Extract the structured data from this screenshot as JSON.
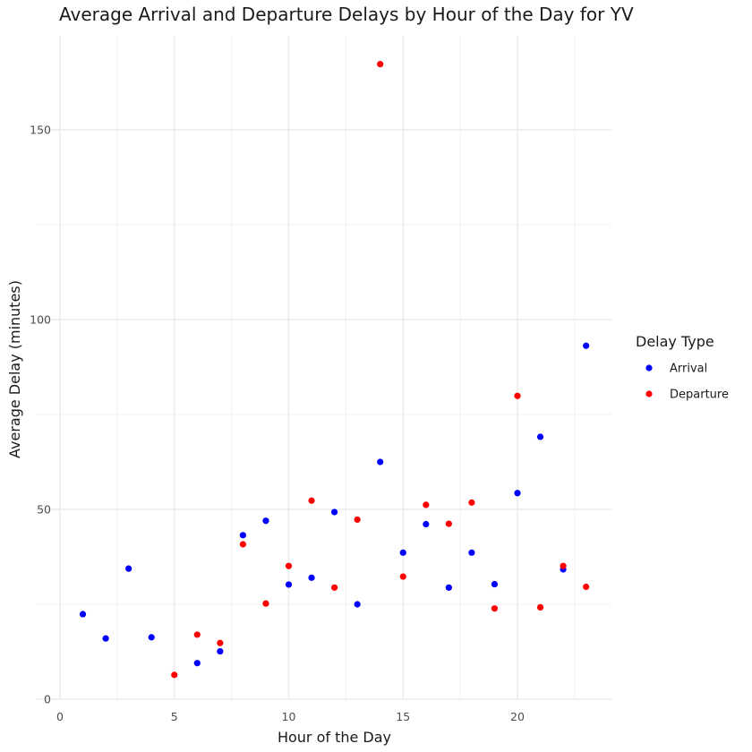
{
  "chart_data": {
    "type": "scatter",
    "title": "Average Arrival and Departure Delays by Hour of the Day for YV",
    "xlabel": "Hour of the Day",
    "ylabel": "Average Delay (minutes)",
    "xlim": [
      0,
      24
    ],
    "ylim": [
      0,
      175
    ],
    "x_ticks": [
      0,
      5,
      10,
      15,
      20
    ],
    "y_ticks": [
      0,
      50,
      100,
      150
    ],
    "grid": true,
    "legend": {
      "title": "Delay Type",
      "position": "right"
    },
    "series": [
      {
        "name": "Arrival",
        "color": "#0000ff",
        "points": [
          [
            1,
            22.4
          ],
          [
            2,
            16.0
          ],
          [
            3,
            34.4
          ],
          [
            4,
            16.3
          ],
          [
            6,
            9.5
          ],
          [
            7,
            12.6
          ],
          [
            8,
            43.2
          ],
          [
            9,
            47.0
          ],
          [
            10,
            30.2
          ],
          [
            11,
            32.0
          ],
          [
            12,
            49.3
          ],
          [
            13,
            25.0
          ],
          [
            14,
            62.5
          ],
          [
            15,
            38.6
          ],
          [
            16,
            46.1
          ],
          [
            17,
            29.4
          ],
          [
            18,
            38.6
          ],
          [
            19,
            30.3
          ],
          [
            20,
            54.3
          ],
          [
            21,
            69.1
          ],
          [
            22,
            34.2
          ],
          [
            23,
            93.1
          ]
        ]
      },
      {
        "name": "Departure",
        "color": "#ff0000",
        "points": [
          [
            5,
            6.4
          ],
          [
            6,
            17.0
          ],
          [
            7,
            14.8
          ],
          [
            8,
            40.8
          ],
          [
            9,
            25.2
          ],
          [
            10,
            35.1
          ],
          [
            11,
            52.3
          ],
          [
            12,
            29.4
          ],
          [
            13,
            47.3
          ],
          [
            14,
            167.3
          ],
          [
            15,
            32.3
          ],
          [
            16,
            51.2
          ],
          [
            17,
            46.2
          ],
          [
            18,
            51.8
          ],
          [
            19,
            23.9
          ],
          [
            20,
            79.9
          ],
          [
            21,
            24.2
          ],
          [
            22,
            35.1
          ],
          [
            23,
            29.6
          ]
        ]
      }
    ]
  }
}
